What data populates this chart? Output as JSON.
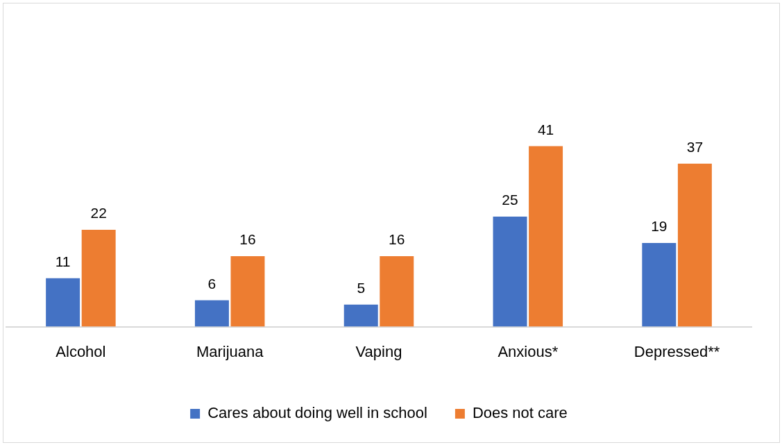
{
  "chart_data": {
    "type": "bar",
    "categories": [
      "Alcohol",
      "Marijuana",
      "Vaping",
      "Anxious*",
      "Depressed**"
    ],
    "series": [
      {
        "name": "Cares about doing well in school",
        "color": "#4472c4",
        "values": [
          11,
          6,
          5,
          25,
          19
        ]
      },
      {
        "name": "Does not care",
        "color": "#ed7d31",
        "values": [
          22,
          16,
          16,
          41,
          37
        ]
      }
    ],
    "data_labels": true,
    "legend": "bottom",
    "grid": false
  }
}
